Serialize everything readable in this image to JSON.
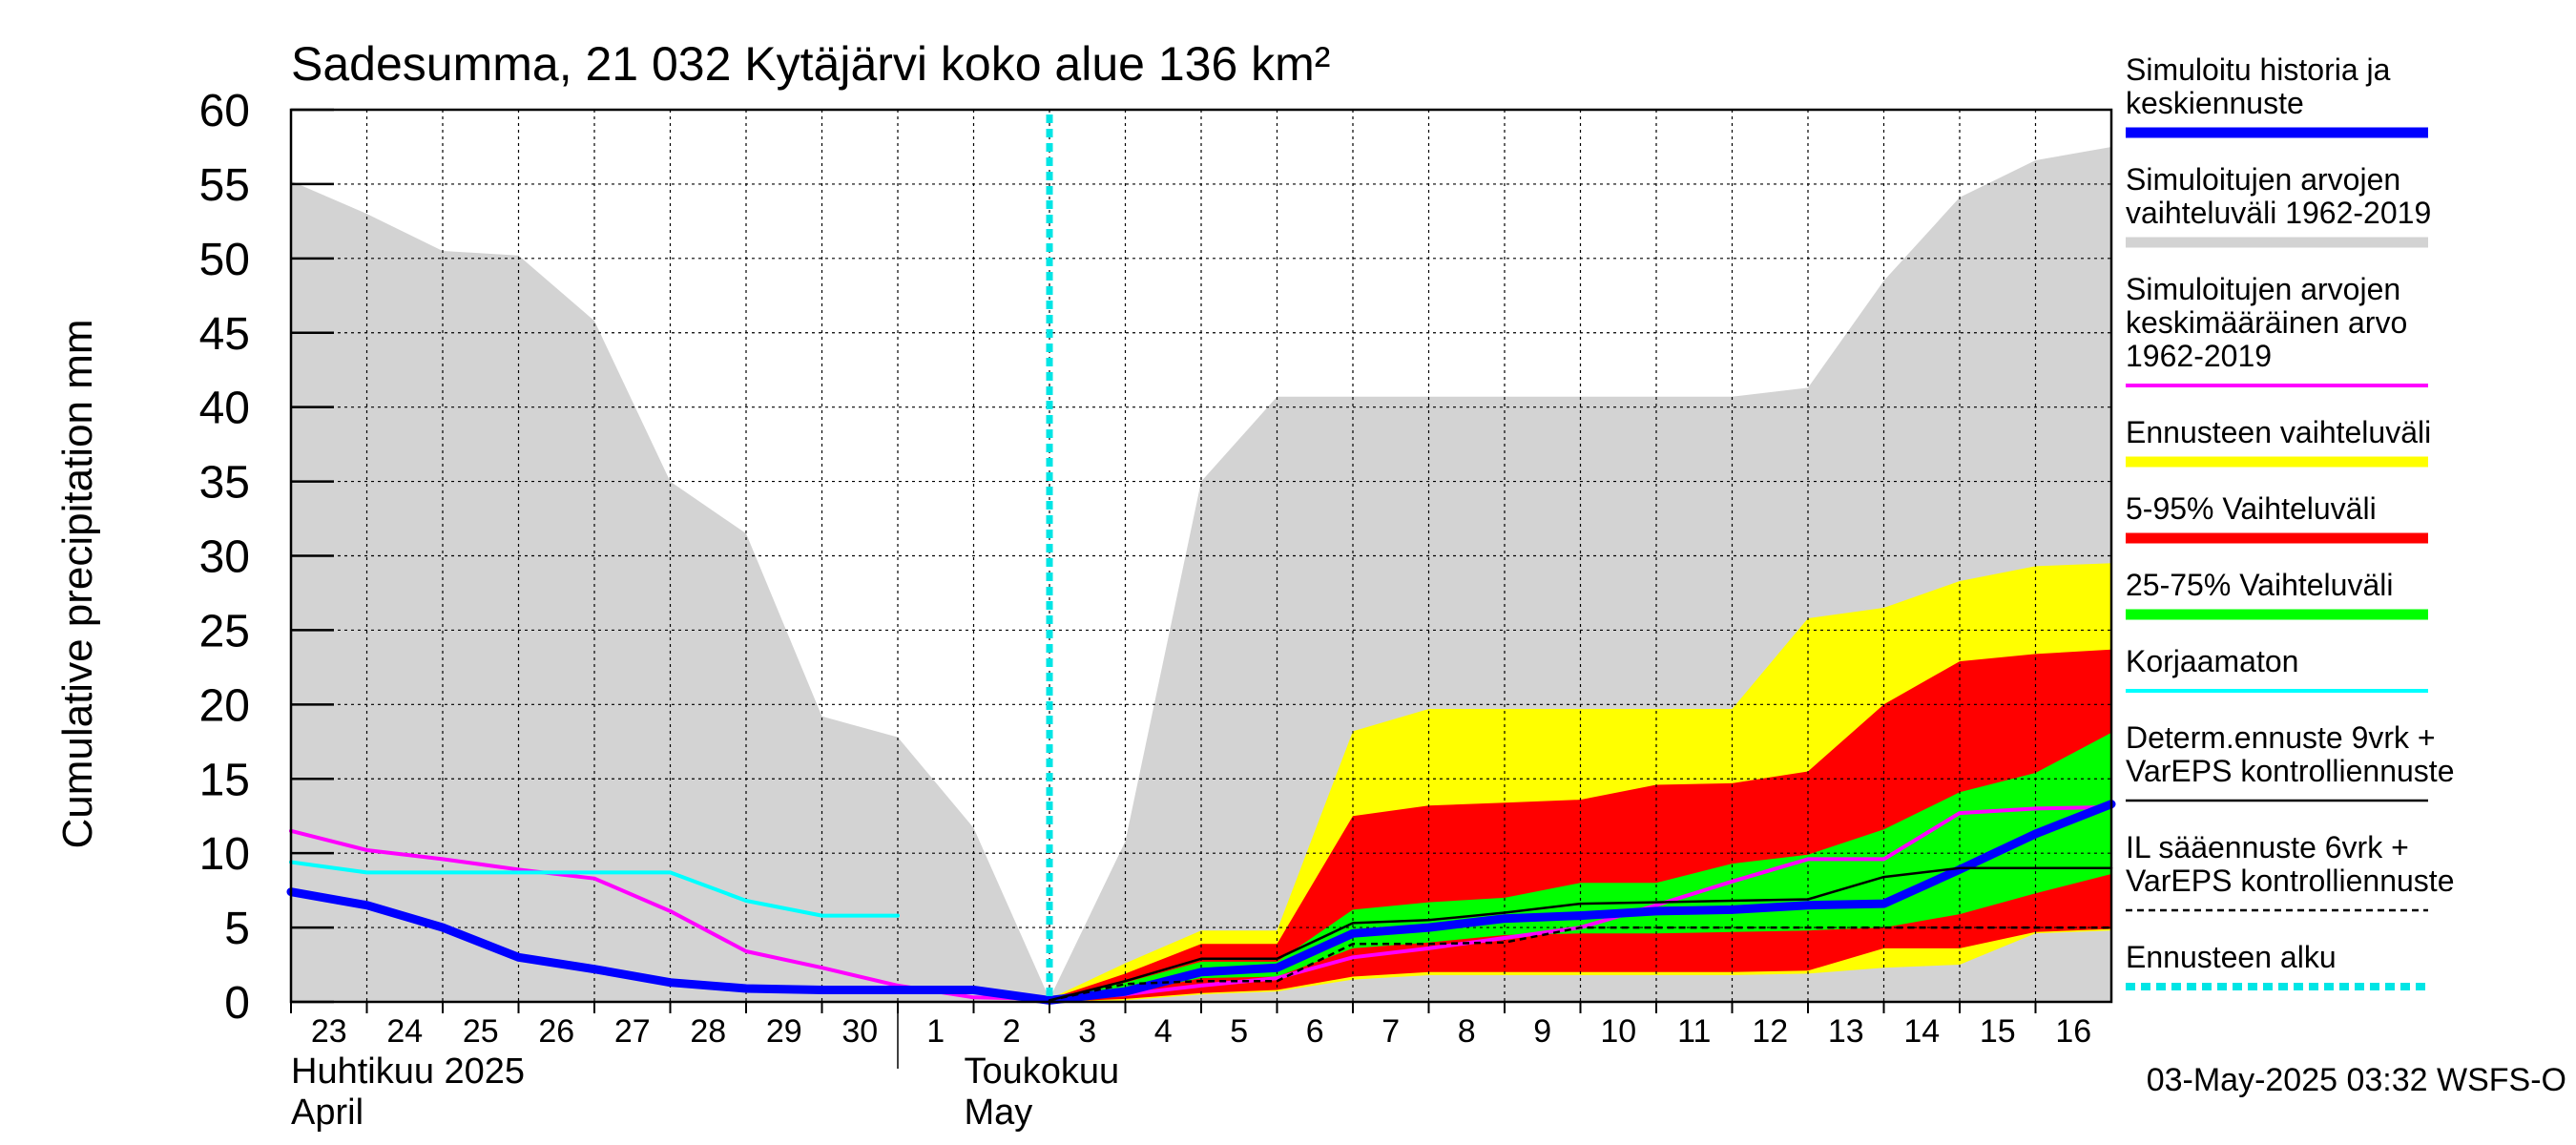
{
  "chart_data": {
    "type": "area",
    "title": "Sadesumma, 21 032 Kytäjärvi koko alue 136 km²",
    "ylabel": "Cumulative precipitation   mm",
    "xlabel": "",
    "ylim": [
      0,
      60
    ],
    "yticks": [
      "0",
      "5",
      "10",
      "15",
      "20",
      "25",
      "30",
      "35",
      "40",
      "45",
      "50",
      "55",
      "60"
    ],
    "grid": true,
    "legend_position": "right",
    "x_day_labels": [
      "23",
      "24",
      "25",
      "26",
      "27",
      "28",
      "29",
      "30",
      "1",
      "2",
      "3",
      "4",
      "5",
      "6",
      "7",
      "8",
      "9",
      "10",
      "11",
      "12",
      "13",
      "14",
      "15",
      "16"
    ],
    "month_labels": [
      {
        "fi": "Huhtikuu  2025",
        "en": "April"
      },
      {
        "fi": "Toukokuu",
        "en": "May"
      }
    ],
    "forecast_start_day": 10.0,
    "series": [
      {
        "name": "Simuloitujen arvojen vaihteluväli 1962-2019",
        "kind": "band",
        "color": "#d3d3d3",
        "upper": [
          [
            0,
            55.2
          ],
          [
            1,
            53
          ],
          [
            2,
            50.5
          ],
          [
            3,
            50.2
          ],
          [
            4,
            45.8
          ],
          [
            5,
            35
          ],
          [
            6,
            31.5
          ],
          [
            7,
            19.2
          ],
          [
            8,
            17.8
          ],
          [
            9,
            11.7
          ],
          [
            10,
            0.2
          ],
          [
            11,
            10.8
          ],
          [
            12,
            35
          ],
          [
            13,
            40.7
          ],
          [
            14,
            40.7
          ],
          [
            15,
            40.7
          ],
          [
            16,
            40.7
          ],
          [
            17,
            40.7
          ],
          [
            18,
            40.7
          ],
          [
            19,
            40.7
          ],
          [
            20,
            41.3
          ],
          [
            21,
            48.5
          ],
          [
            22,
            54.1
          ],
          [
            23,
            56.6
          ],
          [
            24,
            57.5
          ]
        ],
        "lower": [
          [
            0,
            0
          ],
          [
            24,
            0
          ]
        ]
      },
      {
        "name": "Ennusteen vaihteluväli",
        "kind": "band",
        "color": "#ffff00",
        "upper": [
          [
            10,
            0.2
          ],
          [
            11,
            2.6
          ],
          [
            12,
            4.8
          ],
          [
            13,
            4.8
          ],
          [
            14,
            18.2
          ],
          [
            15,
            19.7
          ],
          [
            16,
            19.7
          ],
          [
            17,
            19.7
          ],
          [
            18,
            19.7
          ],
          [
            19,
            19.7
          ],
          [
            20,
            25.8
          ],
          [
            21,
            26.5
          ],
          [
            22,
            28.3
          ],
          [
            23,
            29.3
          ],
          [
            24,
            29.5
          ]
        ],
        "lower": [
          [
            10,
            0
          ],
          [
            11,
            0.1
          ],
          [
            12,
            0.5
          ],
          [
            13,
            0.7
          ],
          [
            14,
            1.5
          ],
          [
            15,
            1.8
          ],
          [
            16,
            1.8
          ],
          [
            17,
            1.8
          ],
          [
            18,
            1.8
          ],
          [
            19,
            1.8
          ],
          [
            20,
            1.9
          ],
          [
            21,
            2.3
          ],
          [
            22,
            2.5
          ],
          [
            23,
            4.6
          ],
          [
            24,
            4.8
          ]
        ]
      },
      {
        "name": "5-95% Vaihteluväli",
        "kind": "band",
        "color": "#ff0000",
        "upper": [
          [
            10,
            0.2
          ],
          [
            11,
            1.9
          ],
          [
            12,
            3.9
          ],
          [
            13,
            3.9
          ],
          [
            14,
            12.5
          ],
          [
            15,
            13.2
          ],
          [
            16,
            13.4
          ],
          [
            17,
            13.6
          ],
          [
            18,
            14.6
          ],
          [
            19,
            14.7
          ],
          [
            20,
            15.5
          ],
          [
            21,
            20
          ],
          [
            22,
            22.9
          ],
          [
            23,
            23.4
          ],
          [
            24,
            23.7
          ]
        ],
        "lower": [
          [
            10,
            0
          ],
          [
            11,
            0.2
          ],
          [
            12,
            0.6
          ],
          [
            13,
            0.8
          ],
          [
            14,
            1.7
          ],
          [
            15,
            2
          ],
          [
            16,
            2
          ],
          [
            17,
            2
          ],
          [
            18,
            2
          ],
          [
            19,
            2
          ],
          [
            20,
            2.1
          ],
          [
            21,
            3.6
          ],
          [
            22,
            3.6
          ],
          [
            23,
            4.7
          ],
          [
            24,
            4.9
          ]
        ]
      },
      {
        "name": "25-75% Vaihteluväli",
        "kind": "band",
        "color": "#00ff00",
        "upper": [
          [
            10,
            0.2
          ],
          [
            11,
            1.3
          ],
          [
            12,
            2.7
          ],
          [
            13,
            2.7
          ],
          [
            14,
            6.2
          ],
          [
            15,
            6.7
          ],
          [
            16,
            7
          ],
          [
            17,
            8
          ],
          [
            18,
            8
          ],
          [
            19,
            9.3
          ],
          [
            20,
            9.9
          ],
          [
            21,
            11.6
          ],
          [
            22,
            14.1
          ],
          [
            23,
            15.4
          ],
          [
            24,
            18.1
          ]
        ],
        "lower": [
          [
            10,
            0
          ],
          [
            11,
            0.6
          ],
          [
            12,
            1.6
          ],
          [
            13,
            1.7
          ],
          [
            14,
            3.6
          ],
          [
            15,
            4
          ],
          [
            16,
            4.5
          ],
          [
            17,
            4.6
          ],
          [
            18,
            4.6
          ],
          [
            19,
            4.7
          ],
          [
            20,
            4.8
          ],
          [
            21,
            5
          ],
          [
            22,
            5.9
          ],
          [
            23,
            7.3
          ],
          [
            24,
            8.6
          ]
        ]
      },
      {
        "name": "Simuloitujen arvojen keskimääräinen arvo 1962-2019",
        "kind": "line",
        "color": "#ff00ff",
        "width": 4,
        "points": [
          [
            0,
            11.5
          ],
          [
            1,
            10.2
          ],
          [
            2,
            9.6
          ],
          [
            3,
            8.9
          ],
          [
            4,
            8.3
          ],
          [
            5,
            6.1
          ],
          [
            6,
            3.4
          ],
          [
            7,
            2.3
          ],
          [
            8,
            1.1
          ],
          [
            9,
            0.3
          ],
          [
            10,
            0.2
          ],
          [
            11,
            0.5
          ],
          [
            12,
            1.1
          ],
          [
            13,
            1.6
          ],
          [
            14,
            3
          ],
          [
            15,
            3.6
          ],
          [
            16,
            4.3
          ],
          [
            17,
            5
          ],
          [
            18,
            6.5
          ],
          [
            19,
            8.1
          ],
          [
            20,
            9.6
          ],
          [
            21,
            9.6
          ],
          [
            22,
            12.7
          ],
          [
            23,
            13
          ],
          [
            24,
            13.1
          ]
        ]
      },
      {
        "name": "Korjaamaton",
        "kind": "line",
        "color": "#00ffff",
        "width": 4,
        "points": [
          [
            0,
            9.4
          ],
          [
            1,
            8.7
          ],
          [
            2,
            8.7
          ],
          [
            3,
            8.7
          ],
          [
            4,
            8.7
          ],
          [
            5,
            8.7
          ],
          [
            6,
            6.8
          ],
          [
            7,
            5.8
          ],
          [
            8,
            5.8
          ]
        ]
      },
      {
        "name": "Simuloitu historia ja keskiennuste",
        "kind": "line",
        "color": "#0000ff",
        "width": 9,
        "points": [
          [
            0,
            7.4
          ],
          [
            1,
            6.5
          ],
          [
            2,
            5
          ],
          [
            3,
            3
          ],
          [
            4,
            2.2
          ],
          [
            5,
            1.3
          ],
          [
            6,
            0.9
          ],
          [
            7,
            0.8
          ],
          [
            8,
            0.8
          ],
          [
            9,
            0.8
          ],
          [
            10,
            0.1
          ],
          [
            11,
            0.7
          ],
          [
            12,
            2
          ],
          [
            13,
            2.3
          ],
          [
            14,
            4.6
          ],
          [
            15,
            5
          ],
          [
            16,
            5.6
          ],
          [
            17,
            5.8
          ],
          [
            18,
            6.1
          ],
          [
            19,
            6.2
          ],
          [
            20,
            6.5
          ],
          [
            21,
            6.6
          ],
          [
            22,
            8.9
          ],
          [
            23,
            11.3
          ],
          [
            24,
            13.3
          ]
        ]
      },
      {
        "name": "Determ.ennuste 9vrk + VarEPS kontrolliennuste",
        "kind": "line",
        "color": "#000000",
        "width": 2.5,
        "points": [
          [
            10,
            0.1
          ],
          [
            11,
            1.4
          ],
          [
            12,
            2.9
          ],
          [
            13,
            2.9
          ],
          [
            14,
            5.3
          ],
          [
            15,
            5.5
          ],
          [
            16,
            6
          ],
          [
            17,
            6.6
          ],
          [
            18,
            6.7
          ],
          [
            19,
            6.8
          ],
          [
            20,
            6.9
          ],
          [
            21,
            8.4
          ],
          [
            22,
            9
          ],
          [
            23,
            9
          ],
          [
            24,
            9
          ]
        ]
      },
      {
        "name": "IL sääennuste 6vrk + VarEPS kontrolliennuste",
        "kind": "dashed",
        "color": "#000000",
        "width": 2.5,
        "points": [
          [
            10,
            0.1
          ],
          [
            11,
            1.2
          ],
          [
            12,
            1.4
          ],
          [
            13,
            1.4
          ],
          [
            14,
            3.9
          ],
          [
            15,
            3.9
          ],
          [
            16,
            4
          ],
          [
            17,
            5
          ],
          [
            18,
            5
          ],
          [
            19,
            5
          ],
          [
            20,
            5
          ],
          [
            21,
            5
          ],
          [
            22,
            5
          ],
          [
            23,
            5
          ],
          [
            24,
            5
          ]
        ]
      },
      {
        "name": "Ennusteen alku",
        "kind": "marker",
        "color": "#00e5e5"
      }
    ]
  },
  "legend": [
    {
      "lines": [
        "Simuloitu historia ja",
        "keskiennuste"
      ],
      "color": "#0000ff",
      "style": "thick"
    },
    {
      "lines": [
        "Simuloitujen arvojen",
        "vaihteluväli 1962-2019"
      ],
      "color": "#d3d3d3",
      "style": "thick"
    },
    {
      "lines": [
        "Simuloitujen arvojen",
        "keskimääräinen arvo",
        "   1962-2019"
      ],
      "color": "#ff00ff",
      "style": "thin"
    },
    {
      "lines": [
        "Ennusteen vaihteluväli"
      ],
      "color": "#ffff00",
      "style": "thick"
    },
    {
      "lines": [
        "5-95% Vaihteluväli"
      ],
      "color": "#ff0000",
      "style": "thick"
    },
    {
      "lines": [
        "25-75% Vaihteluväli"
      ],
      "color": "#00ff00",
      "style": "thick"
    },
    {
      "lines": [
        "Korjaamaton"
      ],
      "color": "#00ffff",
      "style": "thin"
    },
    {
      "lines": [
        "Determ.ennuste 9vrk +",
        "VarEPS kontrolliennuste"
      ],
      "color": "#000000",
      "style": "hair"
    },
    {
      "lines": [
        "IL sääennuste 6vrk  +",
        "  VarEPS kontrolliennuste"
      ],
      "color": "#000000",
      "style": "dashed"
    },
    {
      "lines": [
        "Ennusteen alku"
      ],
      "color": "#00e5e5",
      "style": "dotted"
    }
  ],
  "footer": {
    "timestamp": "03-May-2025 03:32 WSFS-O"
  }
}
